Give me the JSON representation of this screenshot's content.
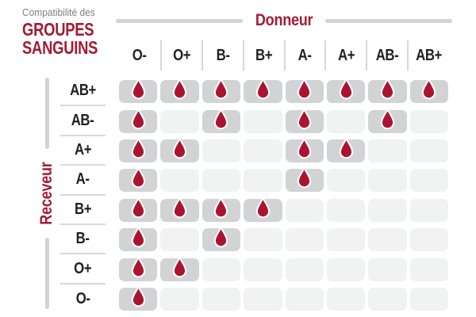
{
  "title": {
    "subtitle": "Compatibilité des",
    "line1": "GROUPES",
    "line2": "SANGUINS"
  },
  "donor_axis": {
    "label": "Donneur"
  },
  "receiver_axis": {
    "label": "Receveur"
  },
  "icons": {
    "compatible_marker": "blood-drop-icon"
  },
  "colors": {
    "brand_red": "#A21C33",
    "drop_red": "#AB1430",
    "drop_stroke": "#FFFFFF",
    "text_dark": "#231F20",
    "subtitle_gray": "#7C7E81",
    "cell_filled": "#D1D3D4",
    "cell_empty": "#F1F2F2",
    "line_gray": "#D1D3D4",
    "divider_gray": "#D6D7D8",
    "separator_gray": "#D8D9DB"
  },
  "chart_data": {
    "type": "heatmap",
    "title": "Compatibilité des GROUPES SANGUINS",
    "x_axis_label": "Donneur",
    "y_axis_label": "Receveur",
    "columns": [
      "O-",
      "O+",
      "B-",
      "B+",
      "A-",
      "A+",
      "AB-",
      "AB+"
    ],
    "rows": [
      "AB+",
      "AB-",
      "A+",
      "A-",
      "B+",
      "B-",
      "O+",
      "O-"
    ],
    "matrix": [
      [
        1,
        1,
        1,
        1,
        1,
        1,
        1,
        1
      ],
      [
        1,
        0,
        1,
        0,
        1,
        0,
        1,
        0
      ],
      [
        1,
        1,
        0,
        0,
        1,
        1,
        0,
        0
      ],
      [
        1,
        0,
        0,
        0,
        1,
        0,
        0,
        0
      ],
      [
        1,
        1,
        1,
        1,
        0,
        0,
        0,
        0
      ],
      [
        1,
        0,
        1,
        0,
        0,
        0,
        0,
        0
      ],
      [
        1,
        1,
        0,
        0,
        0,
        0,
        0,
        0
      ],
      [
        1,
        0,
        0,
        0,
        0,
        0,
        0,
        0
      ]
    ],
    "marker_meaning": "blood-drop-icon shown in compatible cells",
    "legend_position": "none",
    "grid": false
  }
}
